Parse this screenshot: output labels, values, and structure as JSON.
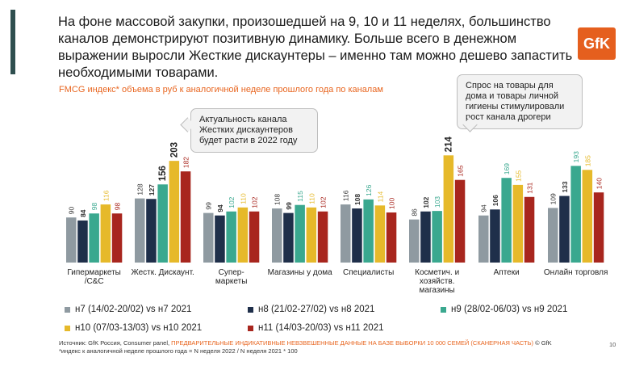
{
  "slide": {
    "title": "На фоне массовой закупки, произошедшей на 9, 10 и 11 неделях, большинство каналов демонстрируют позитивную динамику. Больше всего в денежном выражении выросли Жесткие дискаунтеры – именно там можно дешево запастить необходимыми товарами.",
    "logo": "GfK",
    "subtitle": "FMCG индекс* объема в руб к аналогичной неделе прошлого года по каналам",
    "callout_left": "Актуальность канала Жестких дискаунтеров будет расти в 2022 году",
    "callout_right": "Спрос на товары для дома и товары личной гигиены  стимулировали рост канала дрогери",
    "footer_source_prefix": "Источник: GfK Россия, Consumer panel, ",
    "footer_source_highlight": "ПРЕДВАРИТЕЛЬНЫЕ ИНДИКАТИВНЫЕ НЕВЗВЕШЕННЫЕ ДАННЫЕ НА БАЗЕ ВЫБОРКИ 10 000 СЕМЕЙ (СКАНЕРНАЯ ЧАСТЬ)",
    "footer_source_suffix": " © GfK",
    "footer_note": "*индекс к аналогичной неделе прошлого года = N неделя 2022 / N неделя 2021 * 100",
    "page_number": "10"
  },
  "colors": {
    "accent": "#e8651f",
    "logo_bg": "#e55f1e",
    "series": [
      "#8f9aa1",
      "#1f2f4a",
      "#3aa88f",
      "#e6b92a",
      "#a8261e"
    ]
  },
  "chart_data": {
    "type": "bar",
    "title": "FMCG индекс* объема в руб к аналогичной неделе прошлого года по каналам",
    "categories": [
      "Гипермаркеты /C&C",
      "Жестк. Дискаунт.",
      "Супер-маркеты",
      "Магазины у дома",
      "Специалисты",
      "Косметич. и хозяйств. магазины",
      "Аптеки",
      "Онлайн торговля"
    ],
    "category_lines": [
      [
        "Гипермаркеты",
        "/C&C"
      ],
      [
        "Жестк. Дискаунт."
      ],
      [
        "Супер-",
        "маркеты"
      ],
      [
        "Магазины у дома"
      ],
      [
        "Специалисты"
      ],
      [
        "Косметич. и",
        "хозяйств.",
        "магазины"
      ],
      [
        "Аптеки"
      ],
      [
        "Онлайн торговля"
      ]
    ],
    "series": [
      {
        "name": "н7 (14/02-20/02) vs н7 2021",
        "values": [
          90,
          128,
          99,
          108,
          116,
          86,
          94,
          109
        ]
      },
      {
        "name": "н8 (21/02-27/02) vs н8 2021",
        "values": [
          84,
          127,
          94,
          99,
          108,
          102,
          106,
          133
        ]
      },
      {
        "name": "н9 (28/02-06/03) vs н9 2021",
        "values": [
          98,
          156,
          102,
          115,
          126,
          103,
          169,
          193
        ]
      },
      {
        "name": "н10 (07/03-13/03) vs н10 2021",
        "values": [
          116,
          203,
          110,
          110,
          114,
          214,
          155,
          185
        ]
      },
      {
        "name": "н11 (14/03-20/03) vs н11 2021",
        "values": [
          98,
          182,
          102,
          102,
          100,
          165,
          131,
          140
        ]
      }
    ],
    "highlighted_labels": [
      {
        "category": "Жестк. Дискаунт.",
        "series": "н9 (28/02-06/03) vs н9 2021"
      },
      {
        "category": "Жестк. Дискаунт.",
        "series": "н10 (07/03-13/03) vs н10 2021"
      },
      {
        "category": "Косметич. и хозяйств. магазины",
        "series": "н10 (07/03-13/03) vs н10 2021"
      }
    ],
    "ylim": [
      0,
      220
    ],
    "grid": false,
    "legend_position": "bottom"
  }
}
